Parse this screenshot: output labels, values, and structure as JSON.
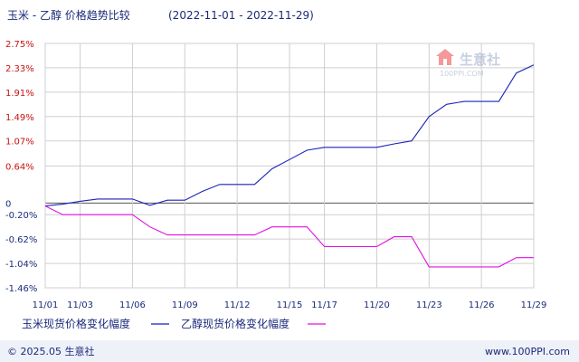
{
  "title": "玉米 - 乙醇 价格趋势比较",
  "date_range": "(2022-11-01 - 2022-11-29)",
  "watermark": {
    "name": "生意社",
    "url": "100PPI.COM"
  },
  "footer": {
    "copyright": "© 2025.05 生意社",
    "site": "www.100PPI.com"
  },
  "colors": {
    "corn": "#1a22b8",
    "ethanol": "#e010e0",
    "axis_red": "#cc1111",
    "grid": "#cfcfcf",
    "text": "#1a2a7a",
    "footer_bg": "#eef1f8"
  },
  "chart_data": {
    "type": "line",
    "xlabel": "",
    "ylabel": "",
    "x": [
      "11/01",
      "11/02",
      "11/03",
      "11/04",
      "11/05",
      "11/06",
      "11/07",
      "11/08",
      "11/09",
      "11/10",
      "11/11",
      "11/12",
      "11/13",
      "11/14",
      "11/15",
      "11/16",
      "11/17",
      "11/18",
      "11/19",
      "11/20",
      "11/21",
      "11/22",
      "11/23",
      "11/24",
      "11/25",
      "11/26",
      "11/27",
      "11/28",
      "11/29"
    ],
    "x_tick_labels": [
      "11/01",
      "11/03",
      "11/06",
      "11/09",
      "11/12",
      "11/15",
      "11/17",
      "11/20",
      "11/23",
      "11/26",
      "11/29"
    ],
    "x_tick_dates": [
      "11/01",
      "11/03",
      "11/06",
      "11/09",
      "11/12",
      "11/15",
      "11/17",
      "11/20",
      "11/23",
      "11/26",
      "11/29"
    ],
    "y_ticks": [
      2.75,
      2.33,
      1.91,
      1.49,
      1.07,
      0.64,
      0,
      -0.2,
      -0.62,
      -1.04,
      -1.46
    ],
    "y_tick_labels": [
      "2.75%",
      "2.33%",
      "1.91%",
      "1.49%",
      "1.07%",
      "0.64%",
      "0",
      "-0.20%",
      "-0.62%",
      "-1.04%",
      "-1.46%"
    ],
    "ylim": [
      -1.46,
      2.75
    ],
    "grid": true,
    "legend_position": "bottom",
    "series": [
      {
        "name": "玉米现货价格变化幅度",
        "color": "#1a22b8",
        "values": [
          -0.05,
          -0.02,
          0.03,
          0.07,
          0.07,
          0.07,
          -0.04,
          0.05,
          0.05,
          0.2,
          0.32,
          0.32,
          0.32,
          0.59,
          0.75,
          0.91,
          0.96,
          0.96,
          0.96,
          0.96,
          1.02,
          1.07,
          1.49,
          1.7,
          1.75,
          1.75,
          1.75,
          2.24,
          2.38
        ]
      },
      {
        "name": "乙醇现货价格变化幅度",
        "color": "#e010e0",
        "values": [
          -0.05,
          -0.2,
          -0.2,
          -0.2,
          -0.2,
          -0.2,
          -0.41,
          -0.55,
          -0.55,
          -0.55,
          -0.55,
          -0.55,
          -0.55,
          -0.41,
          -0.41,
          -0.41,
          -0.75,
          -0.75,
          -0.75,
          -0.75,
          -0.58,
          -0.58,
          -1.1,
          -1.1,
          -1.1,
          -1.1,
          -1.1,
          -0.94,
          -0.94
        ]
      }
    ]
  }
}
